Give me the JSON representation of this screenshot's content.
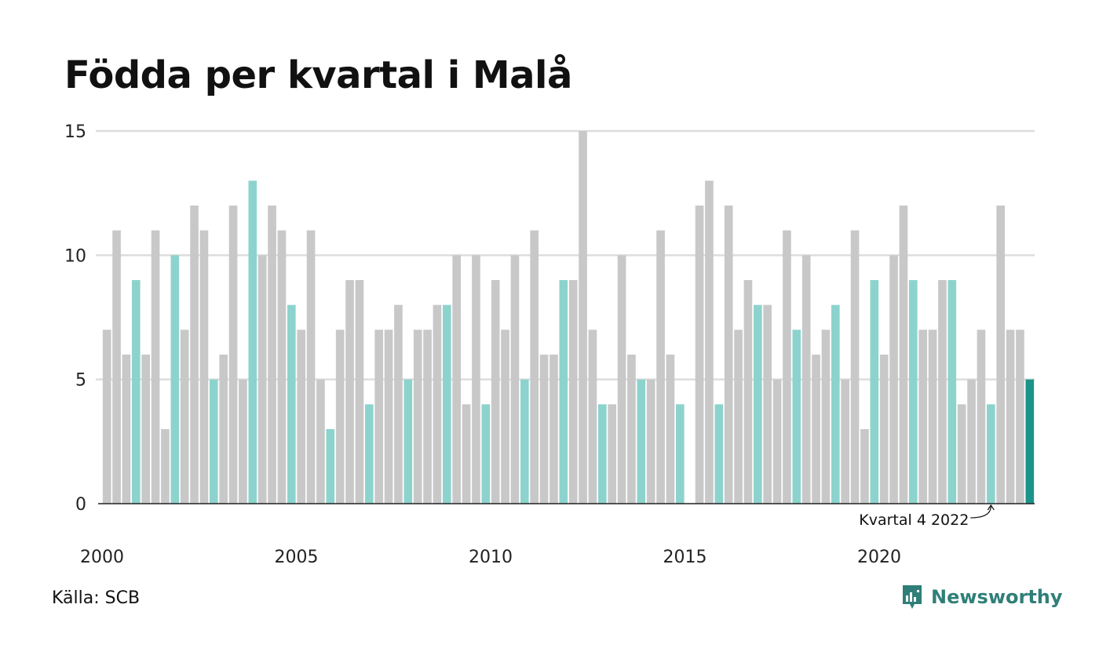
{
  "title": "Födda per kvartal i Malå",
  "source": "Källa: SCB",
  "brand": "Newsworthy",
  "colors": {
    "bar": "#c8c8c8",
    "highlight_quarter": "#8dd3cd",
    "latest": "#1a9488",
    "grid": "#dddddd",
    "axis": "#222222",
    "brand": "#2f7f78"
  },
  "chart_data": {
    "type": "bar",
    "title": "Födda per kvartal i Malå",
    "xlabel": "",
    "ylabel": "",
    "ylim": [
      0,
      15
    ],
    "yticks": [
      0,
      5,
      10,
      15
    ],
    "xticks": [
      "2000",
      "2005",
      "2010",
      "2015",
      "2020"
    ],
    "grid": true,
    "start_year": 2000,
    "periods_per_year": 4,
    "highlight_quarter": 4,
    "values": [
      7,
      11,
      6,
      9,
      6,
      11,
      3,
      10,
      7,
      12,
      11,
      5,
      6,
      12,
      5,
      13,
      10,
      12,
      11,
      8,
      7,
      11,
      5,
      3,
      7,
      9,
      9,
      4,
      7,
      7,
      8,
      5,
      7,
      7,
      8,
      8,
      10,
      4,
      10,
      4,
      9,
      7,
      10,
      5,
      11,
      6,
      6,
      9,
      9,
      15,
      7,
      4,
      4,
      10,
      6,
      5,
      5,
      11,
      6,
      4,
      0,
      12,
      13,
      4,
      12,
      7,
      9,
      8,
      8,
      5,
      11,
      7,
      10,
      6,
      7,
      8,
      5,
      11,
      3,
      9,
      6,
      10,
      12,
      9,
      7,
      7,
      9,
      9,
      4,
      5,
      7,
      4,
      12,
      7,
      7,
      5
    ],
    "annotation": "Kvartal 4 2022",
    "annotation_index": 91
  }
}
